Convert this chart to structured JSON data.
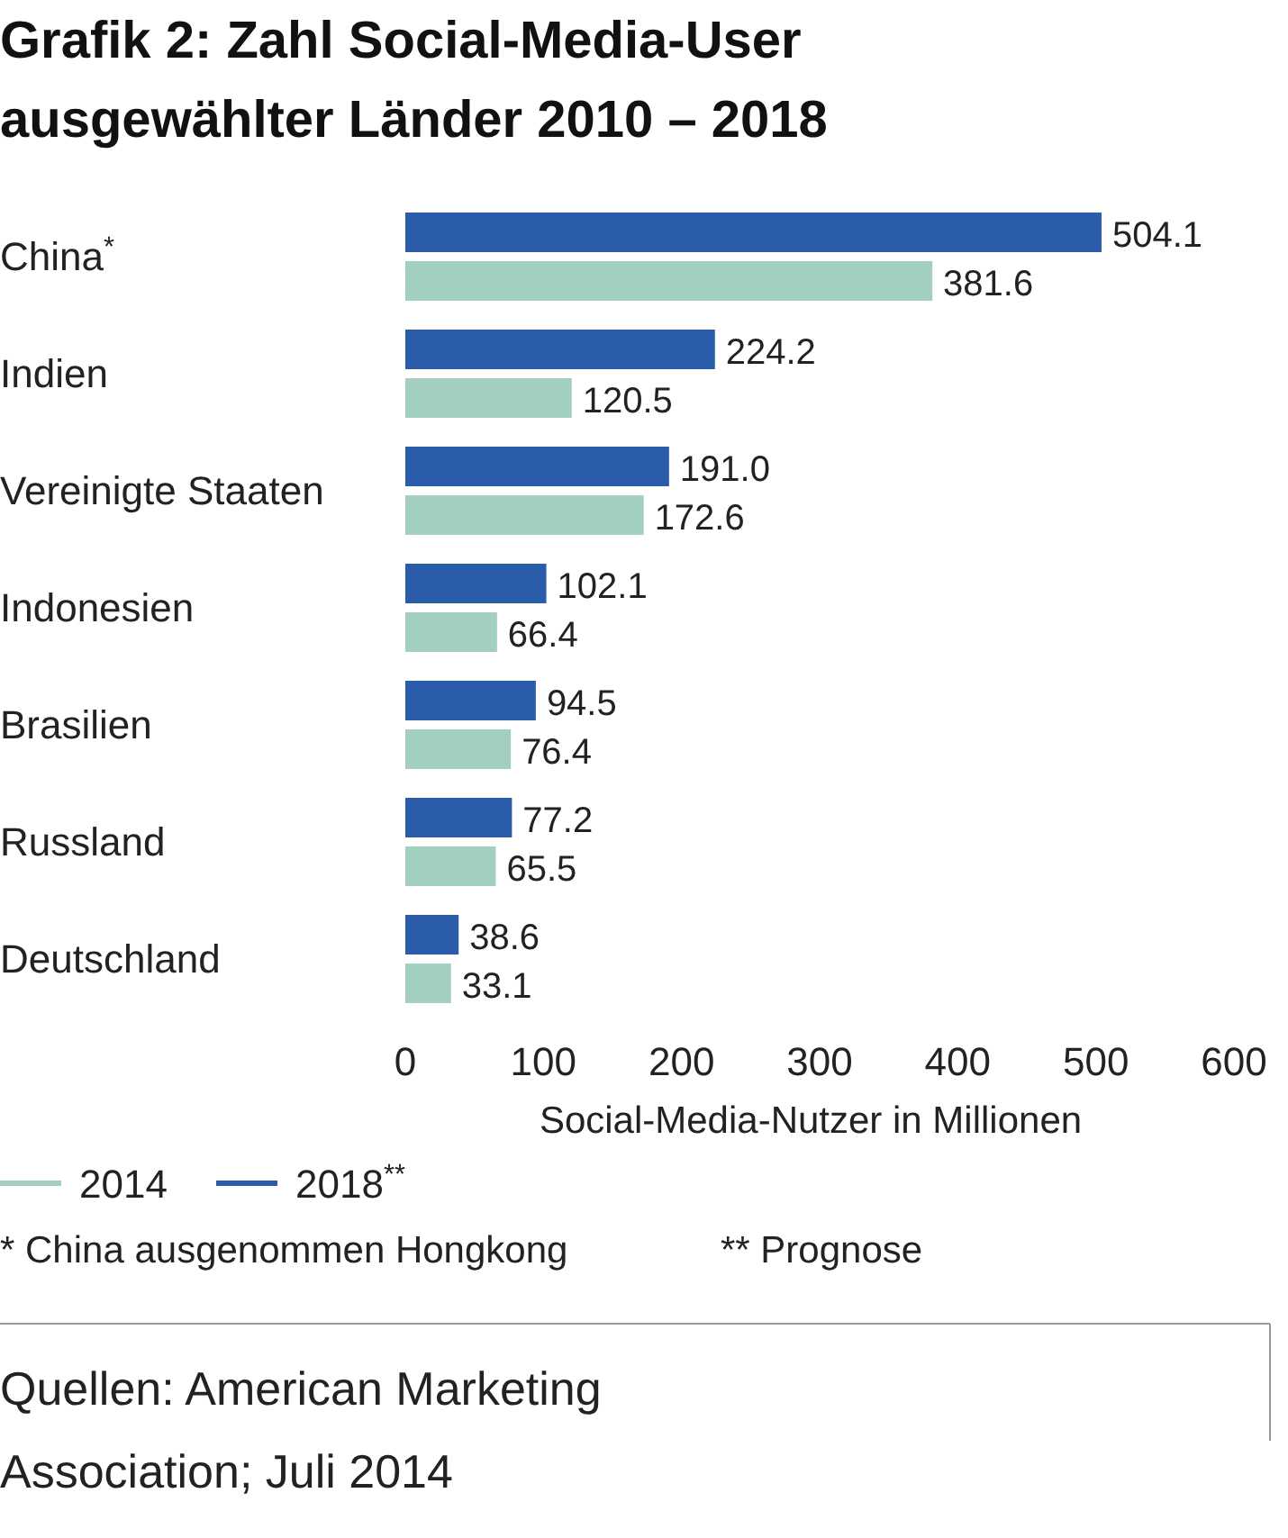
{
  "chart_data": {
    "type": "bar",
    "orientation": "horizontal",
    "title": "Grafik 2: Zahl Social-Media-User ausgewählter Länder 2010 – 2018",
    "xlabel": "Social-Media-Nutzer in Millionen",
    "categories": [
      "China$^{*}$",
      "Indien",
      "Vereinigte Staaten",
      "Indonesien",
      "Brasilien",
      "Russland",
      "Deutschland"
    ],
    "series": [
      {
        "name": "2018$^{**}$",
        "color": "#2a5caa",
        "values": [
          504.1,
          224.2,
          191.0,
          102.1,
          94.5,
          77.2,
          38.6
        ],
        "value_labels": [
          "504.1",
          "224.2",
          "191.0",
          "102.1",
          "94.5",
          "77.2",
          "38.6"
        ]
      },
      {
        "name": "2014",
        "color": "#a3cfc0",
        "values": [
          381.6,
          120.5,
          172.6,
          66.4,
          76.4,
          65.5,
          33.1
        ],
        "value_labels": [
          "381.6",
          "120.5",
          "172.6",
          "66.4",
          "76.4",
          "65.5",
          "33.1"
        ]
      }
    ],
    "xlim": [
      0,
      600
    ],
    "xticks": [
      0,
      100,
      200,
      300,
      400,
      500,
      600
    ],
    "grid": false,
    "legend": "bottom",
    "annotations": [
      "* China ausgenommen Hongkong",
      "** Prognose",
      "Quellen: American Marketing Association; Juli 2014"
    ]
  }
}
